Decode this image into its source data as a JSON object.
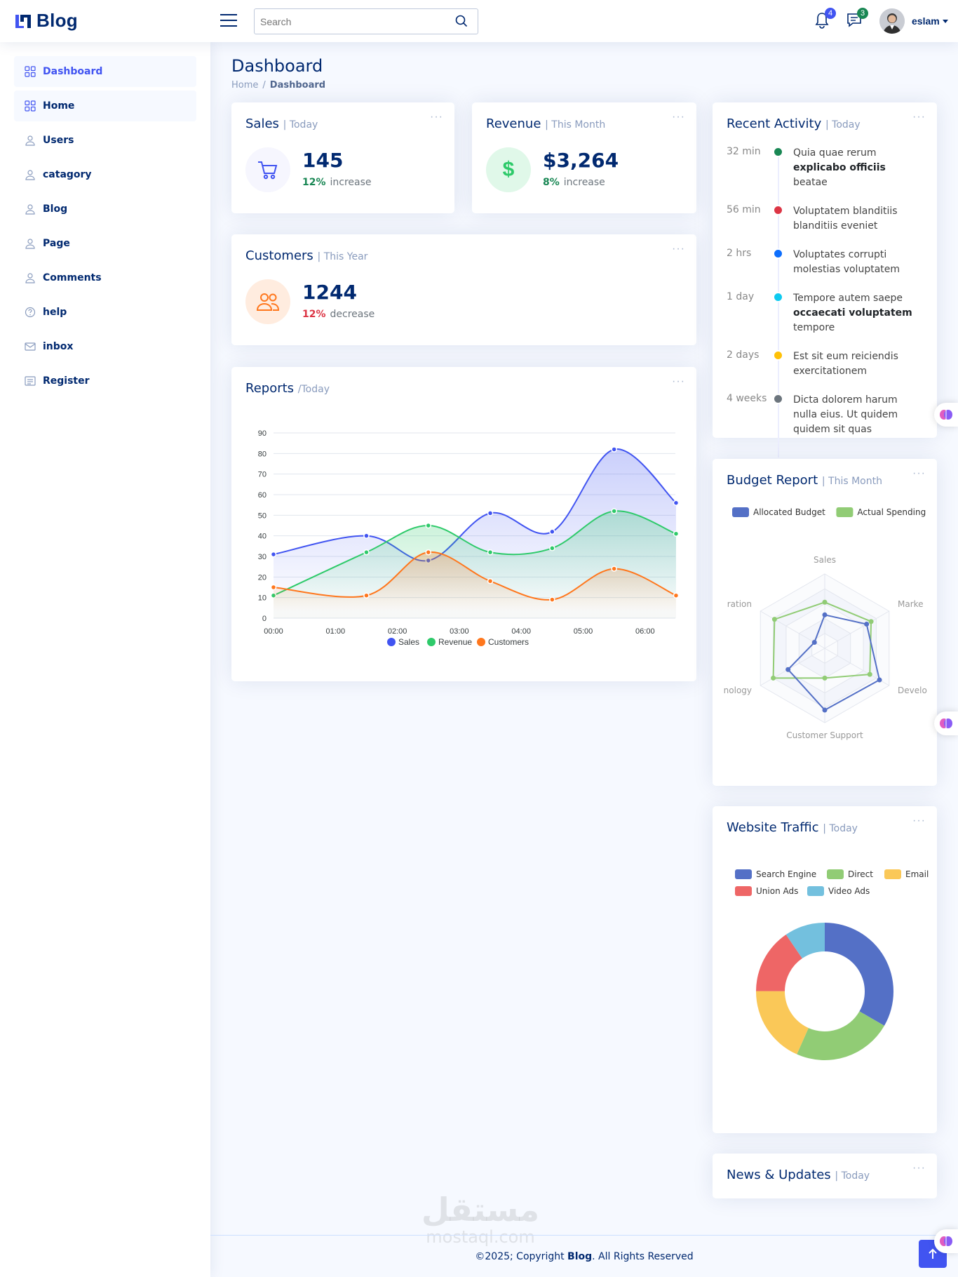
{
  "header": {
    "logo_text": "Blog",
    "search_placeholder": "Search",
    "notifications_count": "4",
    "messages_count": "3",
    "profile_name": "eslam"
  },
  "sidebar": {
    "items": [
      {
        "label": "Dashboard",
        "icon": "grid-icon"
      },
      {
        "label": "Home",
        "icon": "grid-icon"
      },
      {
        "label": "Users",
        "icon": "person-icon"
      },
      {
        "label": "catagory",
        "icon": "person-icon"
      },
      {
        "label": "Blog",
        "icon": "person-icon"
      },
      {
        "label": "Page",
        "icon": "person-icon"
      },
      {
        "label": "Comments",
        "icon": "person-icon"
      },
      {
        "label": "help",
        "icon": "question-circle-icon"
      },
      {
        "label": "inbox",
        "icon": "envelope-icon"
      },
      {
        "label": "Register",
        "icon": "card-list-icon"
      }
    ]
  },
  "page": {
    "title": "Dashboard",
    "breadcrumb": [
      "Home",
      "Dashboard"
    ]
  },
  "cards": {
    "sales": {
      "title": "Sales",
      "period": "| Today",
      "value": "145",
      "pct": "12%",
      "trend": "increase"
    },
    "revenue": {
      "title": "Revenue",
      "period": "| This Month",
      "value": "$3,264",
      "pct": "8%",
      "trend": "increase"
    },
    "customers": {
      "title": "Customers",
      "period": "| This Year",
      "value": "1244",
      "pct": "12%",
      "trend": "decrease"
    }
  },
  "reports": {
    "title": "Reports",
    "period": "/Today"
  },
  "recent_activity": {
    "title": "Recent Activity",
    "period": "| Today",
    "items": [
      {
        "time": "32 min",
        "pre": "Quia quae rerum ",
        "bold": "explicabo officiis",
        "post": " beatae",
        "color": "#198754"
      },
      {
        "time": "56 min",
        "pre": "Voluptatem blanditiis blanditiis eveniet",
        "bold": "",
        "post": "",
        "color": "#dc3545"
      },
      {
        "time": "2 hrs",
        "pre": "Voluptates corrupti molestias voluptatem",
        "bold": "",
        "post": "",
        "color": "#0d6efd"
      },
      {
        "time": "1 day",
        "pre": "Tempore autem saepe ",
        "bold": "occaecati voluptatem",
        "post": " tempore",
        "color": "#0dcaf0"
      },
      {
        "time": "2 days",
        "pre": "Est sit eum reiciendis exercitationem",
        "bold": "",
        "post": "",
        "color": "#ffc107"
      },
      {
        "time": "4 weeks",
        "pre": "Dicta dolorem harum nulla eius. Ut quidem quidem sit quas",
        "bold": "",
        "post": "",
        "color": "#6c757d"
      }
    ]
  },
  "budget": {
    "title": "Budget Report",
    "period": "| This Month"
  },
  "traffic": {
    "title": "Website Traffic",
    "period": "| Today"
  },
  "news": {
    "title": "News & Updates",
    "period": "| Today"
  },
  "footer": {
    "pre": "©2025; Copyright ",
    "brand": "Blog",
    "post": ". All Rights Reserved"
  },
  "watermark": {
    "arabic": "مستقل",
    "latin": "mostaql.com"
  },
  "colors": {
    "primary": "#4154f1",
    "navy": "#012970",
    "green": "#2eca6a",
    "orange": "#ff771d"
  },
  "chart_data": [
    {
      "type": "area",
      "title": "",
      "x": [
        "00:00",
        "01:00",
        "02:00",
        "03:00",
        "04:00",
        "05:00",
        "06:00"
      ],
      "x_points": [
        "00:00",
        "01:30",
        "02:30",
        "03:30",
        "04:30",
        "05:30",
        "06:30"
      ],
      "ylim": [
        0,
        90
      ],
      "yticks": [
        0,
        10,
        20,
        30,
        40,
        50,
        60,
        70,
        80,
        90
      ],
      "legend_position": "bottom",
      "series": [
        {
          "name": "Sales",
          "color": "#4154f1",
          "values": [
            31,
            40,
            28,
            51,
            42,
            82,
            56
          ]
        },
        {
          "name": "Revenue",
          "color": "#2eca6a",
          "values": [
            11,
            32,
            45,
            32,
            34,
            52,
            41
          ]
        },
        {
          "name": "Customers",
          "color": "#ff771d",
          "values": [
            15,
            11,
            32,
            18,
            9,
            24,
            11
          ]
        }
      ]
    },
    {
      "type": "radar",
      "indicators": [
        "Sales",
        "Marke",
        "Develo",
        "Customer Support",
        "nology",
        "ration"
      ],
      "max": 1,
      "legend_position": "top",
      "series": [
        {
          "name": "Allocated Budget",
          "color": "#5470c6",
          "values": [
            0.45,
            0.65,
            0.85,
            0.83,
            0.57,
            0.16
          ]
        },
        {
          "name": "Actual Spending",
          "color": "#91cc75",
          "values": [
            0.62,
            0.72,
            0.7,
            0.4,
            0.8,
            0.78
          ]
        }
      ]
    },
    {
      "type": "pie",
      "legend_position": "top",
      "series": [
        {
          "name": "Search Engine",
          "color": "#5470c6",
          "values": [
            1048
          ]
        },
        {
          "name": "Direct",
          "color": "#91cc75",
          "values": [
            735
          ]
        },
        {
          "name": "Email",
          "color": "#fac858",
          "values": [
            580
          ]
        },
        {
          "name": "Union Ads",
          "color": "#ee6666",
          "values": [
            484
          ]
        },
        {
          "name": "Video Ads",
          "color": "#73c0de",
          "values": [
            300
          ]
        }
      ]
    }
  ]
}
